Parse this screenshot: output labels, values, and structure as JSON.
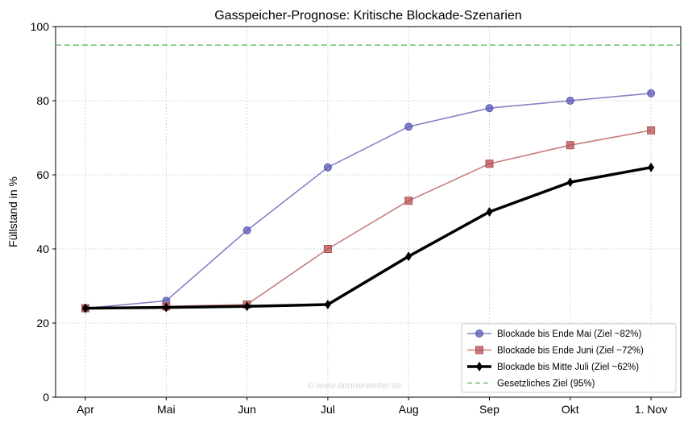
{
  "chart_data": {
    "type": "line",
    "title": "Gasspeicher-Prognose: Kritische Blockade-Szenarien",
    "xlabel": "",
    "ylabel": "Füllstand in %",
    "categories": [
      "Apr",
      "Mai",
      "Jun",
      "Jul",
      "Aug",
      "Sep",
      "Okt",
      "1. Nov"
    ],
    "ylim": [
      0,
      100
    ],
    "yticks": [
      0,
      20,
      40,
      60,
      80,
      100
    ],
    "grid": true,
    "legend_position": "bottom-right",
    "series": [
      {
        "name": "Blockade bis Ende Mai (Ziel ~82%)",
        "color": "#5a5ab4",
        "marker": "circle",
        "values": [
          24,
          26,
          45,
          62,
          73,
          78,
          80,
          82
        ]
      },
      {
        "name": "Blockade bis Ende Juni (Ziel ~72%)",
        "color": "#b45050",
        "marker": "square",
        "values": [
          24,
          24.5,
          25,
          40,
          53,
          63,
          68,
          72
        ]
      },
      {
        "name": "Blockade bis Mitte Juli (Ziel ~62%)",
        "color": "#000000",
        "marker": "diamond",
        "values": [
          24,
          24.2,
          24.5,
          25,
          38,
          50,
          58,
          62
        ]
      }
    ],
    "reference_line": {
      "name": "Gesetzliches Ziel (95%)",
      "value": 95,
      "color": "#6cbf6c",
      "style": "dashed"
    },
    "watermark": "© www.donnerwetter.de"
  }
}
